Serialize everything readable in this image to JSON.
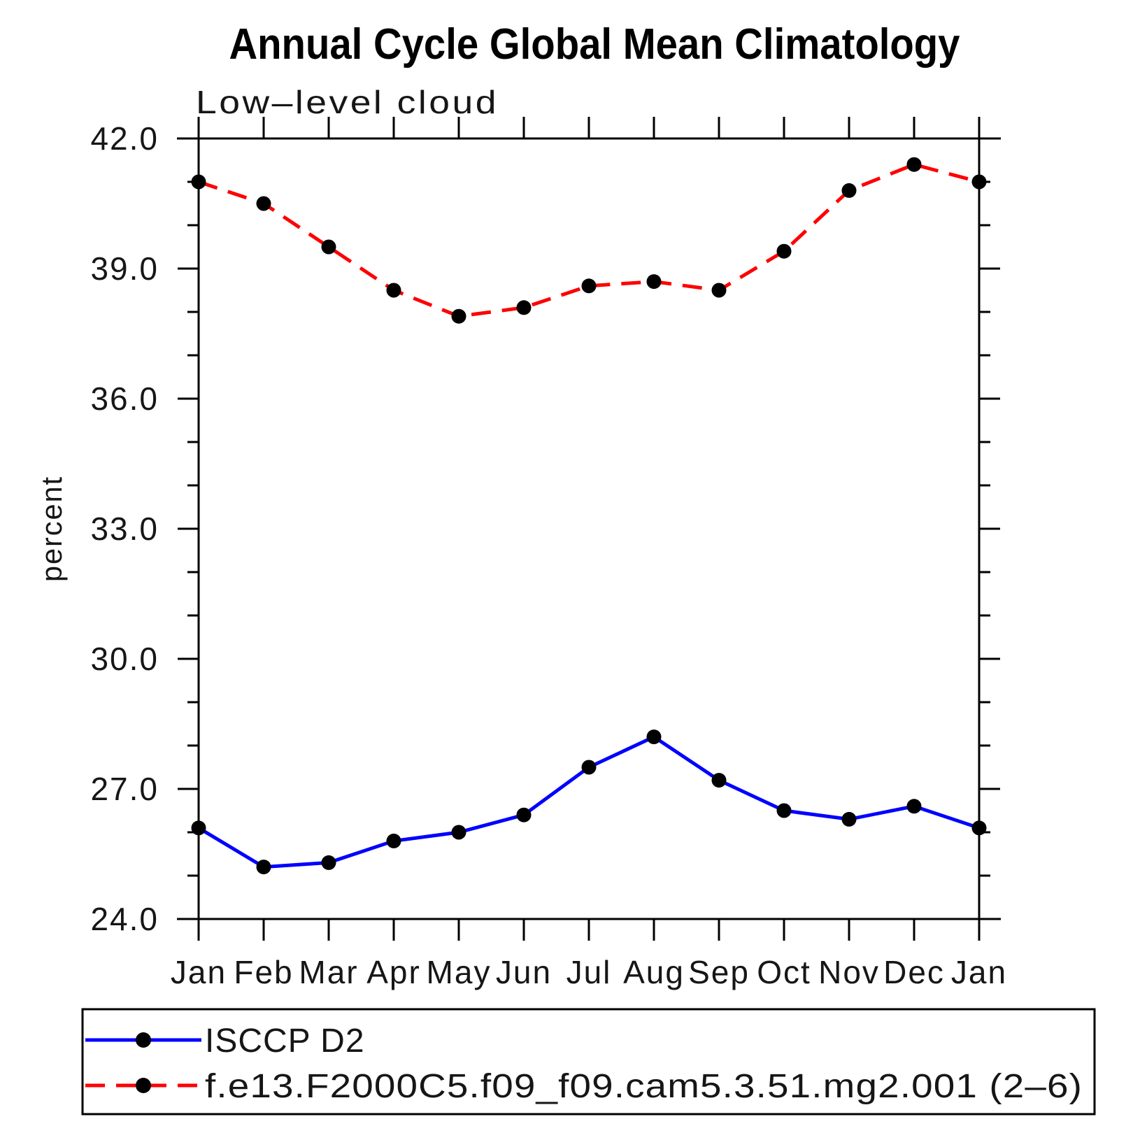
{
  "page": {
    "background": "#ffffff",
    "frame_color": "#000000",
    "text_color": "#161616"
  },
  "chart_data": {
    "type": "line",
    "title": "Annual Cycle Global Mean Climatology",
    "subtitle": "Low–level cloud",
    "xlabel": "",
    "ylabel": "percent",
    "categories": [
      "Jan",
      "Feb",
      "Mar",
      "Apr",
      "May",
      "Jun",
      "Jul",
      "Aug",
      "Sep",
      "Oct",
      "Nov",
      "Dec",
      "Jan"
    ],
    "series": [
      {
        "name": "ISCCP D2",
        "color": "#0000ff",
        "line_style": "solid",
        "marker": "filled-circle",
        "marker_color": "#000000",
        "values": [
          26.1,
          25.2,
          25.3,
          25.8,
          26.0,
          26.4,
          27.5,
          28.2,
          27.2,
          26.5,
          26.3,
          26.6,
          26.1
        ]
      },
      {
        "name": "f.e13.F2000C5.f09_f09.cam5.3.51.mg2.001 (2–6)",
        "color": "#ff0000",
        "line_style": "dashed",
        "marker": "filled-circle",
        "marker_color": "#000000",
        "values": [
          41.0,
          40.5,
          39.5,
          38.5,
          37.9,
          38.1,
          38.6,
          38.7,
          38.5,
          39.4,
          40.8,
          41.4,
          41.0
        ]
      }
    ],
    "ylim": [
      24.0,
      42.0
    ],
    "y_major_tick_labels": [
      "24.0",
      "27.0",
      "30.0",
      "33.0",
      "36.0",
      "39.0",
      "42.0"
    ],
    "y_major_tick_interval": 3.0,
    "y_minor_tick_interval": 1.0,
    "grid": false,
    "tick_direction": "out",
    "legend_position": "bottom"
  }
}
